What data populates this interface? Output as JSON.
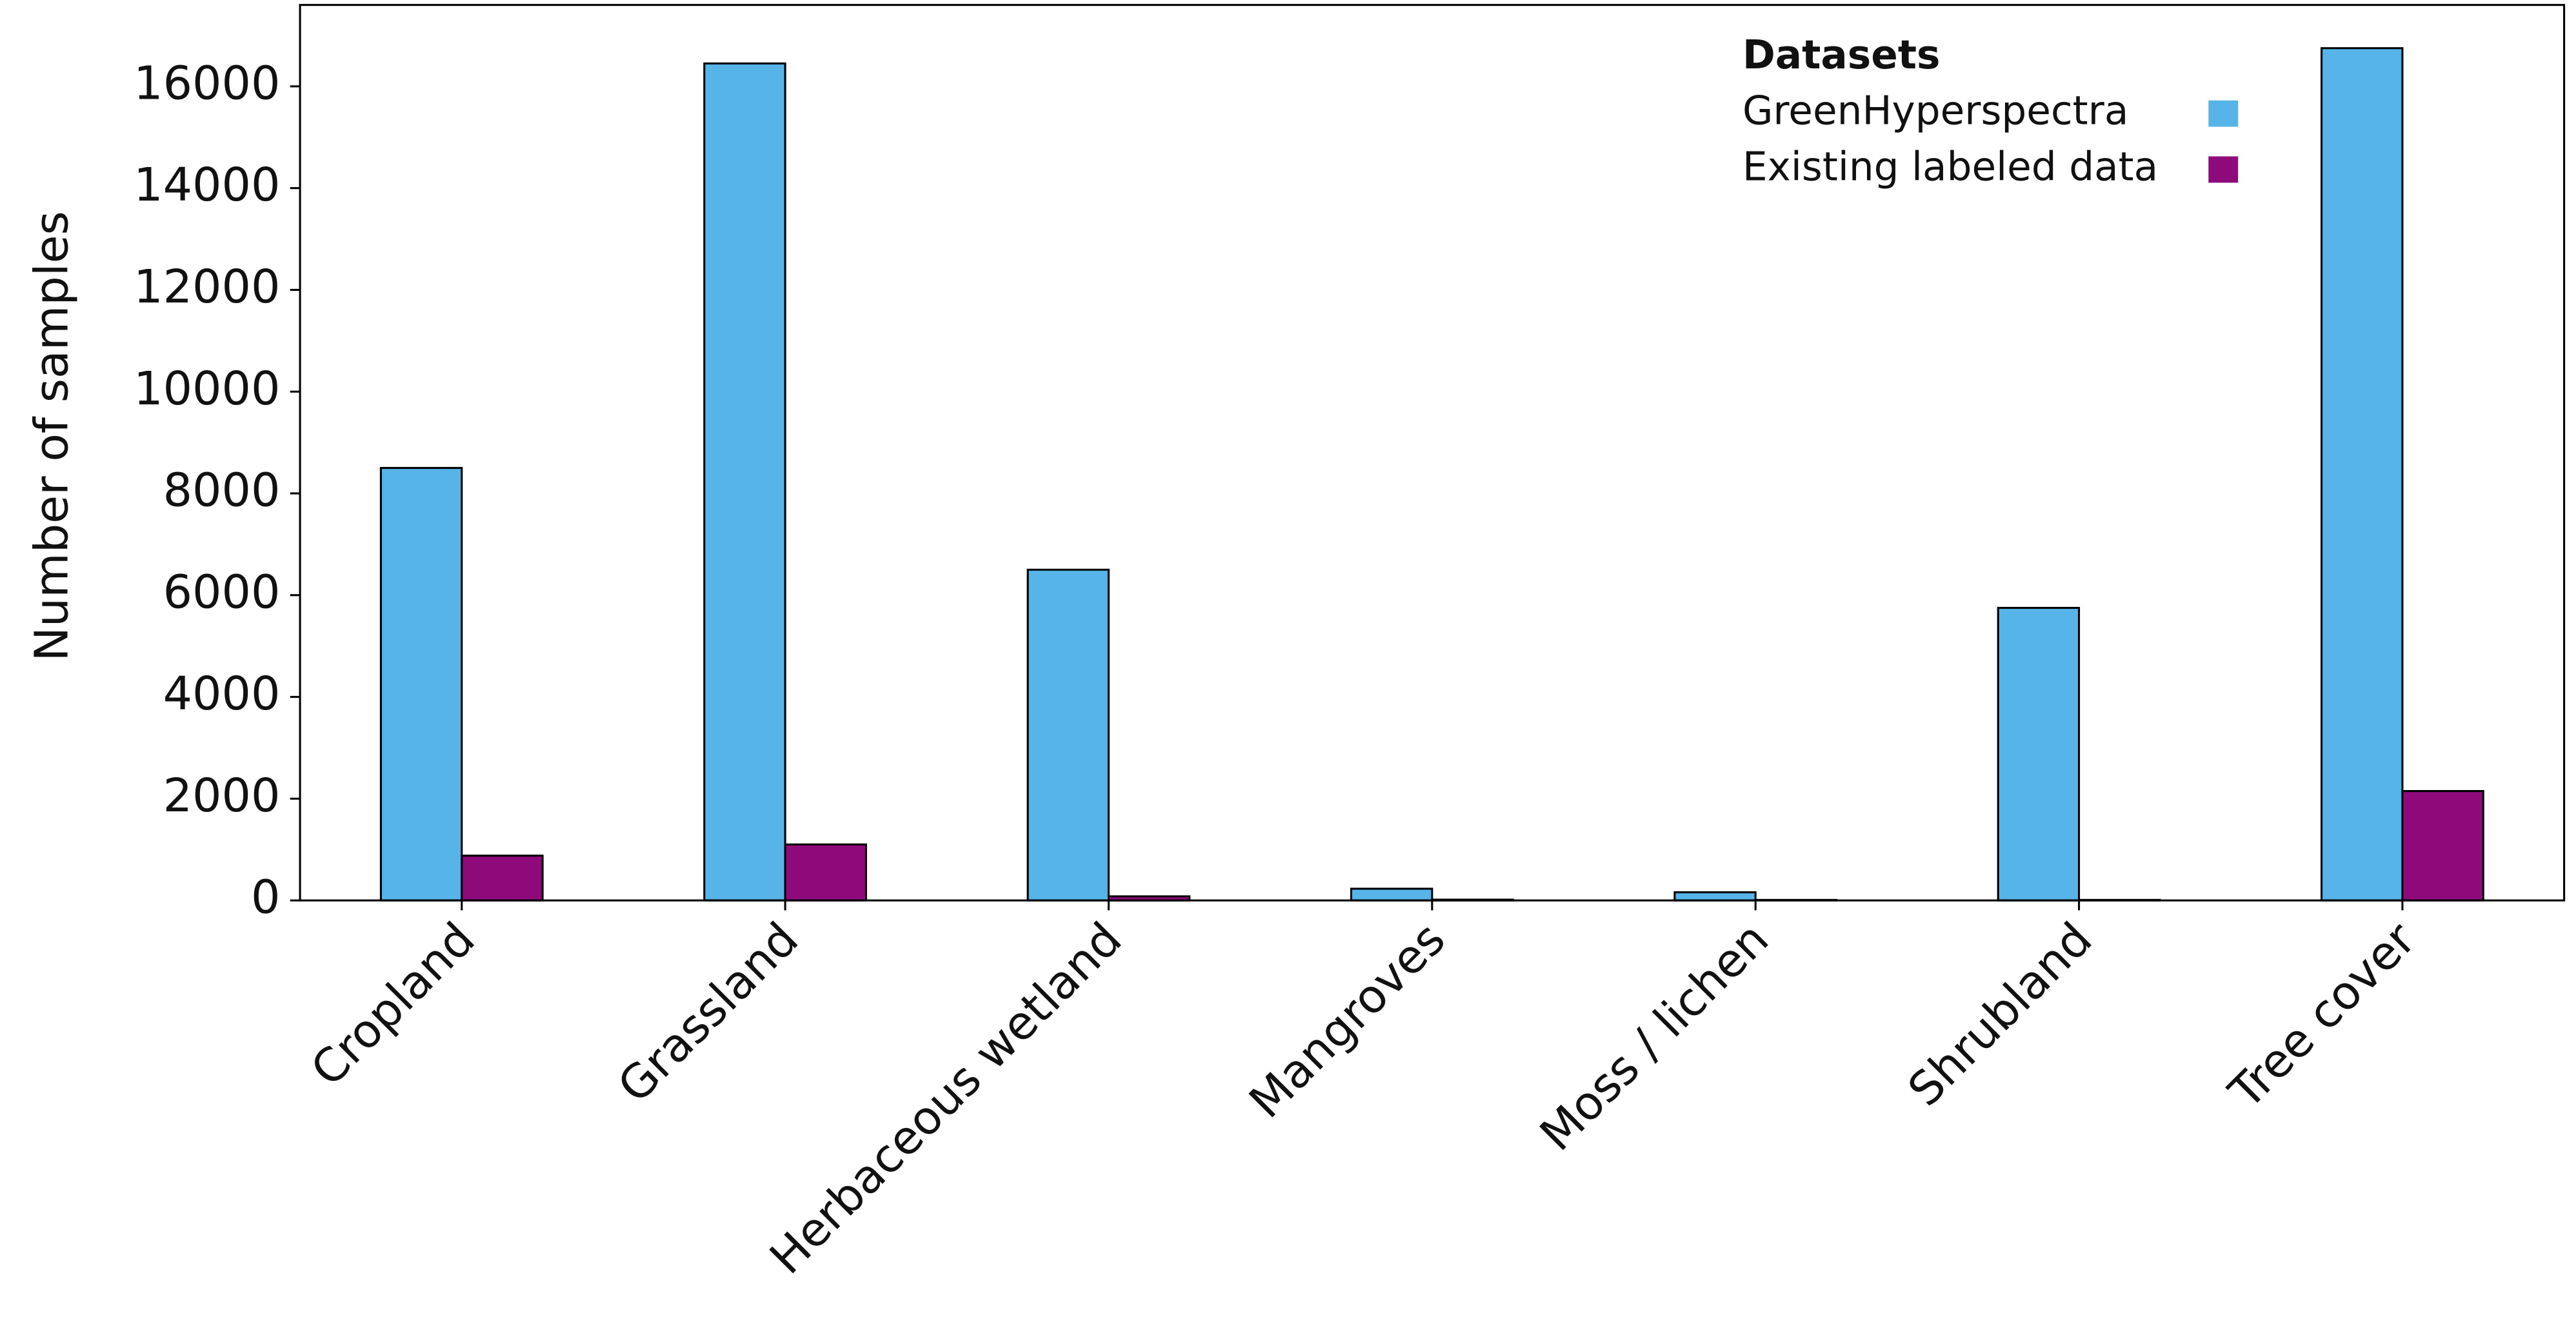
{
  "chart_data": {
    "type": "bar",
    "y_label": "Number of samples",
    "categories": [
      "Cropland",
      "Grassland",
      "Herbaceous wetland",
      "Mangroves",
      "Moss / lichen",
      "Shrubland",
      "Tree cover"
    ],
    "series": [
      {
        "name": "GreenHyperspectra",
        "color": "#56b4e9",
        "values": [
          8500,
          16450,
          6500,
          230,
          160,
          5750,
          16750
        ]
      },
      {
        "name": "Existing labeled data",
        "color": "#8e0a7b",
        "values": [
          880,
          1100,
          80,
          15,
          10,
          10,
          2150
        ]
      }
    ],
    "legend_title": "Datasets",
    "legend_position": "upper right",
    "ylim": [
      0,
      17600
    ],
    "yticks": [
      0,
      2000,
      4000,
      6000,
      8000,
      10000,
      12000,
      14000,
      16000
    ],
    "grid": false
  }
}
